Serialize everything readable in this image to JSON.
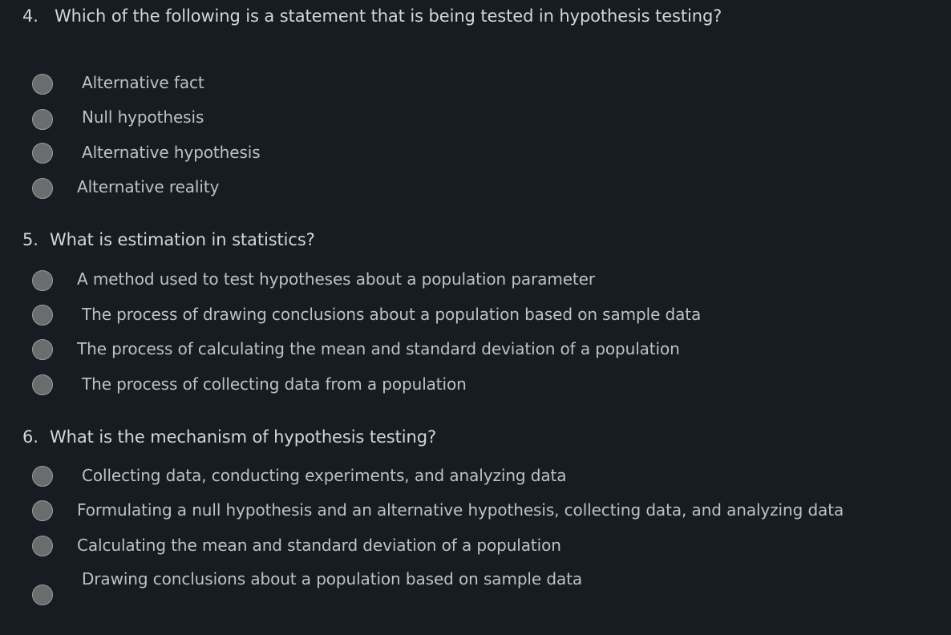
{
  "questions": [
    {
      "number": "4.",
      "text": "Which of the following is a statement that is being tested in hypothesis testing?",
      "options": [
        {
          "label": "Alternative fact"
        },
        {
          "label": "Null hypothesis"
        },
        {
          "label": "Alternative hypothesis"
        },
        {
          "label": "Alternative reality"
        }
      ]
    },
    {
      "number": "5.",
      "text": "What is estimation in statistics?",
      "options": [
        {
          "label": "A method used to test hypotheses about a population parameter"
        },
        {
          "label": "The process of drawing conclusions about a population based on sample data"
        },
        {
          "label": "The process of calculating the mean and standard deviation of a population"
        },
        {
          "label": "The process of collecting data from a population"
        }
      ]
    },
    {
      "number": "6.",
      "text": "What is the mechanism of hypothesis testing?",
      "options": [
        {
          "label": "Collecting data, conducting experiments, and analyzing data"
        },
        {
          "label": "Formulating a null hypothesis and an alternative hypothesis, collecting data, and analyzing data"
        },
        {
          "label": "Calculating the mean and standard deviation of a population"
        },
        {
          "label": "Drawing conclusions about a population based on sample data"
        }
      ]
    }
  ]
}
